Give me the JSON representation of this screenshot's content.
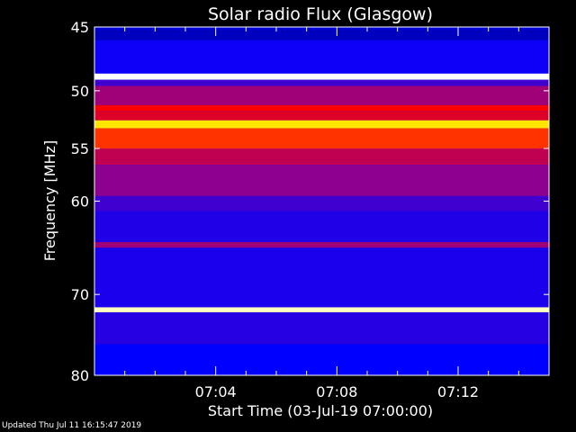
{
  "chart_data": {
    "type": "heatmap",
    "title": "Solar radio Flux (Glasgow)",
    "xlabel": "Start Time (03-Jul-19 07:00:00)",
    "ylabel": "Frequency [MHz]",
    "x_unit": "minutes after 07:00",
    "xlim": [
      0,
      15
    ],
    "x_ticks": [
      {
        "value": 4,
        "label": "07:04"
      },
      {
        "value": 8,
        "label": "07:08"
      },
      {
        "value": 12,
        "label": "07:12"
      }
    ],
    "ylim": [
      45,
      80
    ],
    "y_scale": "log",
    "y_ticks": [
      45,
      50,
      55,
      60,
      70,
      80
    ],
    "colormap": [
      "#000060",
      "#0000ff",
      "#8000a0",
      "#ff0000",
      "#ffff00",
      "#ffffff"
    ],
    "bands": [
      {
        "f_start": 45.0,
        "f_end": 45.2,
        "level": 0.15
      },
      {
        "f_start": 45.2,
        "f_end": 46.0,
        "level": 0.12
      },
      {
        "f_start": 46.0,
        "f_end": 48.6,
        "level": 0.22
      },
      {
        "f_start": 48.6,
        "f_end": 49.1,
        "level": 1.0
      },
      {
        "f_start": 49.1,
        "f_end": 49.6,
        "level": 0.3
      },
      {
        "f_start": 49.6,
        "f_end": 51.2,
        "level": 0.45
      },
      {
        "f_start": 51.2,
        "f_end": 51.7,
        "level": 0.6
      },
      {
        "f_start": 51.7,
        "f_end": 52.5,
        "level": 0.55
      },
      {
        "f_start": 52.5,
        "f_end": 53.2,
        "level": 0.78
      },
      {
        "f_start": 53.2,
        "f_end": 55.0,
        "level": 0.64
      },
      {
        "f_start": 55.0,
        "f_end": 56.5,
        "level": 0.5
      },
      {
        "f_start": 56.5,
        "f_end": 59.5,
        "level": 0.42
      },
      {
        "f_start": 59.5,
        "f_end": 61.0,
        "level": 0.3
      },
      {
        "f_start": 61.0,
        "f_end": 64.2,
        "level": 0.25
      },
      {
        "f_start": 64.2,
        "f_end": 64.8,
        "level": 0.45
      },
      {
        "f_start": 64.8,
        "f_end": 71.5,
        "level": 0.24
      },
      {
        "f_start": 71.5,
        "f_end": 72.1,
        "level": 0.95
      },
      {
        "f_start": 72.1,
        "f_end": 76.0,
        "level": 0.26
      },
      {
        "f_start": 76.0,
        "f_end": 80.0,
        "level": 0.2
      }
    ]
  },
  "footer": "Updated Thu Jul 11 16:15:47 2019"
}
